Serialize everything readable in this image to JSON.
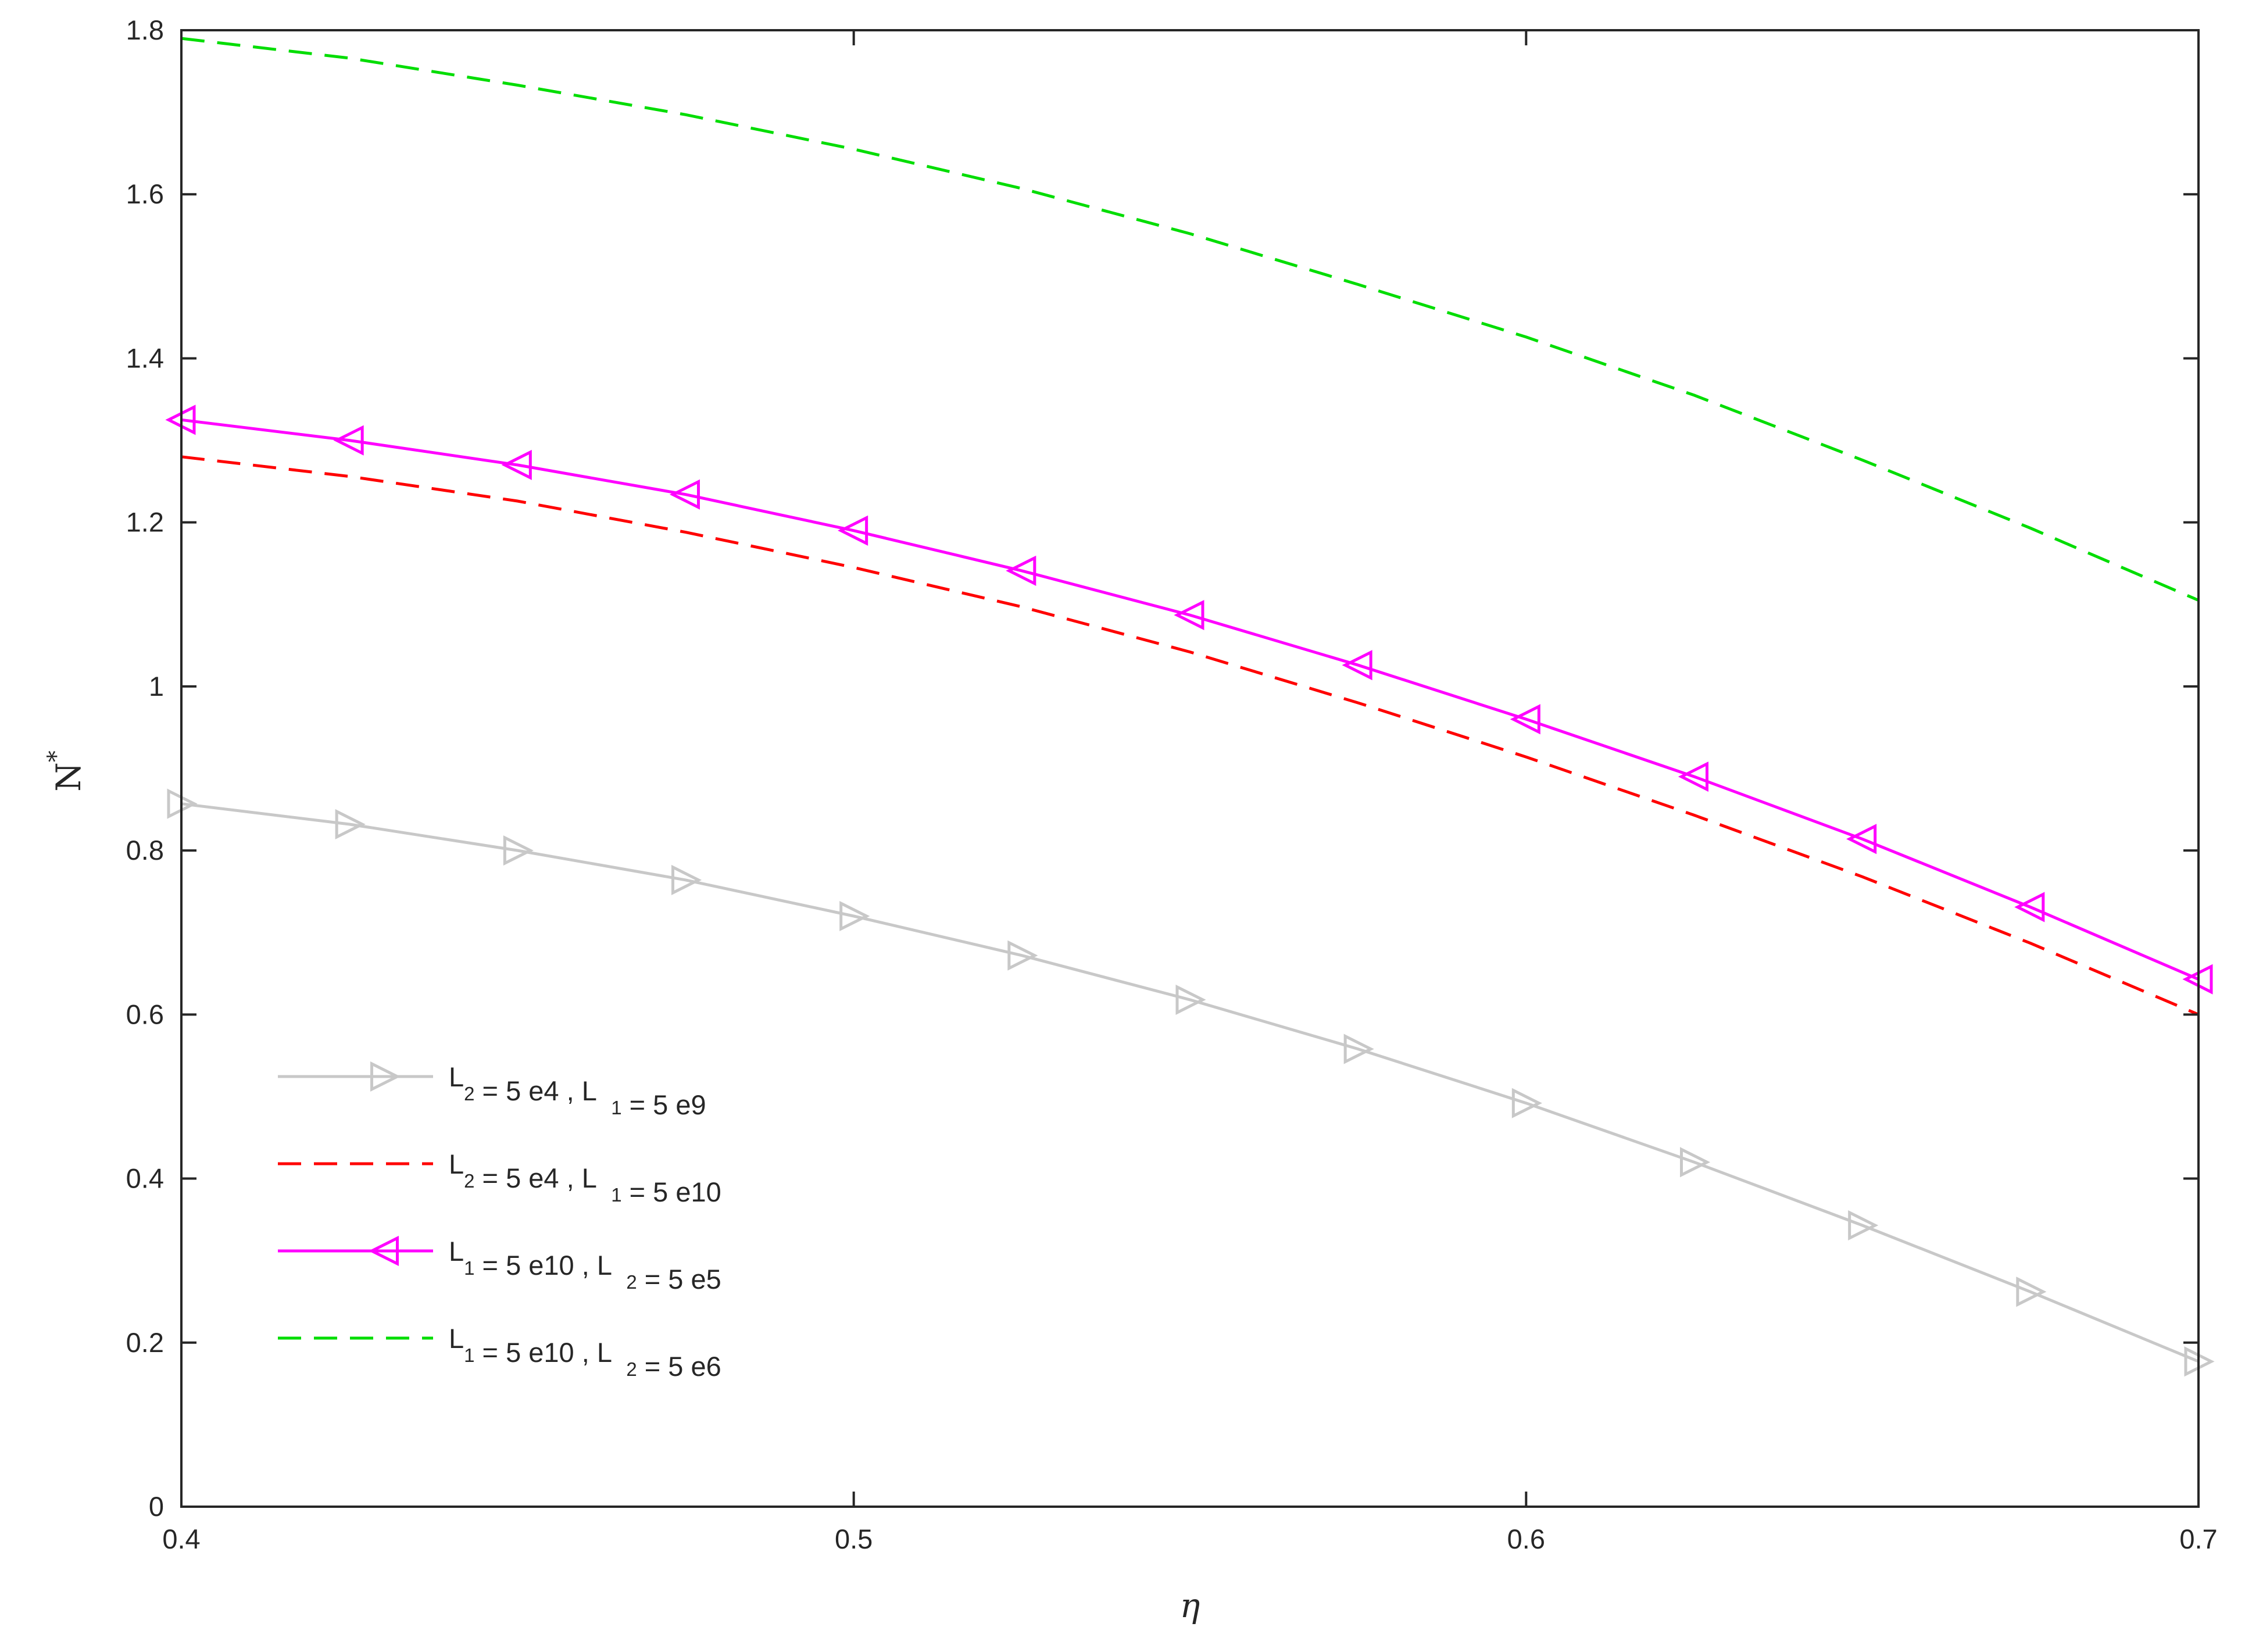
{
  "chart_data": {
    "type": "line",
    "xlabel": "η",
    "ylabel": {
      "base": "N",
      "sup": "*"
    },
    "xlim": [
      0.4,
      0.7
    ],
    "ylim": [
      0,
      1.8
    ],
    "xticks": [
      0.4,
      0.5,
      0.6,
      0.7
    ],
    "xtick_labels": [
      "0.4",
      "0.5",
      "0.6",
      "0.7"
    ],
    "yticks": [
      0,
      0.2,
      0.4,
      0.6,
      0.8,
      1.0,
      1.2,
      1.4,
      1.6,
      1.8
    ],
    "ytick_labels": [
      "0",
      "0.2",
      "0.4",
      "0.6",
      "0.8",
      "1",
      "1.2",
      "1.4",
      "1.6",
      "1.8"
    ],
    "grid": false,
    "legend_position": "lower-left",
    "x": [
      0.4,
      0.425,
      0.45,
      0.475,
      0.5,
      0.525,
      0.55,
      0.575,
      0.6,
      0.625,
      0.65,
      0.675,
      0.7
    ],
    "series": [
      {
        "legend": [
          {
            "text": "L",
            "sub": "2"
          },
          {
            "text": " = 5 e4 , L"
          },
          {
            "text": "  ",
            "sub": "1"
          },
          {
            "text": " = 5 e9"
          }
        ],
        "color": "#c8c8c8",
        "line_style": "solid",
        "marker": "triangle-right",
        "values": [
          0.857,
          0.832,
          0.8,
          0.764,
          0.72,
          0.672,
          0.618,
          0.558,
          0.492,
          0.42,
          0.343,
          0.262,
          0.177
        ]
      },
      {
        "legend": [
          {
            "text": "L",
            "sub": "2"
          },
          {
            "text": " = 5 e4 , L"
          },
          {
            "text": "  ",
            "sub": "1"
          },
          {
            "text": " = 5 e10"
          }
        ],
        "color": "#ff0000",
        "line_style": "dashed",
        "marker": "none",
        "values": [
          1.28,
          1.256,
          1.226,
          1.188,
          1.145,
          1.097,
          1.042,
          0.98,
          0.914,
          0.843,
          0.768,
          0.687,
          0.6
        ]
      },
      {
        "legend": [
          {
            "text": "L",
            "sub": "1"
          },
          {
            "text": " = 5 e10 , L"
          },
          {
            "text": "  ",
            "sub": "2"
          },
          {
            "text": " = 5 e5"
          }
        ],
        "color": "#ff00ff",
        "line_style": "solid",
        "marker": "triangle-left",
        "values": [
          1.325,
          1.3,
          1.27,
          1.234,
          1.19,
          1.141,
          1.087,
          1.026,
          0.96,
          0.89,
          0.814,
          0.731,
          0.643
        ]
      },
      {
        "legend": [
          {
            "text": "L",
            "sub": "1"
          },
          {
            "text": " = 5 e10 , L"
          },
          {
            "text": "  ",
            "sub": "2"
          },
          {
            "text": " = 5 e6"
          }
        ],
        "color": "#00dd00",
        "line_style": "dashed",
        "marker": "none",
        "values": [
          1.79,
          1.766,
          1.733,
          1.697,
          1.655,
          1.607,
          1.552,
          1.49,
          1.426,
          1.355,
          1.276,
          1.193,
          1.105
        ]
      }
    ]
  }
}
